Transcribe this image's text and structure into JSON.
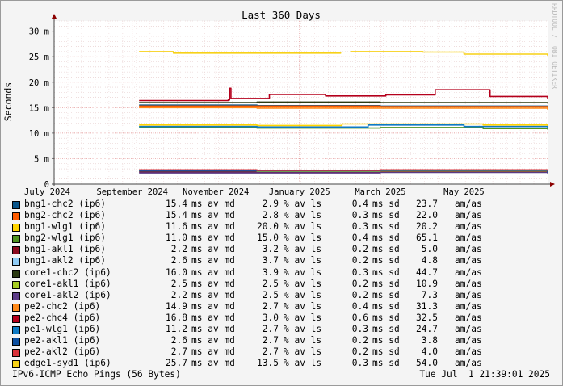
{
  "chart_data": {
    "type": "line",
    "title": "Last 360 Days",
    "ylabel": "Seconds",
    "watermark": "RRDTOOL / TOBI OETIKER",
    "ylim": [
      0,
      32
    ],
    "yticks": [
      {
        "v": 0,
        "label": "0"
      },
      {
        "v": 5,
        "label": "5 m"
      },
      {
        "v": 10,
        "label": "10 m"
      },
      {
        "v": 15,
        "label": "15 m"
      },
      {
        "v": 20,
        "label": "20 m"
      },
      {
        "v": 25,
        "label": "25 m"
      },
      {
        "v": 30,
        "label": "30 m"
      }
    ],
    "xlim": [
      "2024-07-06",
      "2025-07-01"
    ],
    "xticks": [
      {
        "date": "2024-07-01",
        "label": "July 2024"
      },
      {
        "date": "2024-09-01",
        "label": "September 2024"
      },
      {
        "date": "2024-11-01",
        "label": "November 2024"
      },
      {
        "date": "2025-01-01",
        "label": "January 2025"
      },
      {
        "date": "2025-03-01",
        "label": "March 2025"
      },
      {
        "date": "2025-05-01",
        "label": "May 2025"
      }
    ],
    "series": [
      {
        "name": "bng1-chc2 (ip6)",
        "color": "#08558a",
        "points": [
          [
            "2024-09-06",
            15.5
          ],
          [
            "2024-12-01",
            15.4
          ],
          [
            "2025-03-01",
            15.3
          ],
          [
            "2025-07-01",
            15.0
          ]
        ]
      },
      {
        "name": "bng2-chc2 (ip6)",
        "color": "#ff5c00",
        "points": [
          [
            "2024-09-06",
            15.3
          ],
          [
            "2024-12-01",
            15.3
          ],
          [
            "2025-03-01",
            15.2
          ],
          [
            "2025-07-01",
            14.8
          ]
        ]
      },
      {
        "name": "bng1-wlg1 (ip6)",
        "color": "#ffd400",
        "points": [
          [
            "2024-09-06",
            11.6
          ],
          [
            "2024-12-01",
            11.5
          ],
          [
            "2025-02-01",
            11.8
          ],
          [
            "2025-05-15",
            11.6
          ],
          [
            "2025-07-01",
            11.3
          ]
        ]
      },
      {
        "name": "bng2-wlg1 (ip6)",
        "color": "#4f9320",
        "points": [
          [
            "2024-09-06",
            11.2
          ],
          [
            "2024-12-01",
            11.0
          ],
          [
            "2025-03-01",
            11.1
          ],
          [
            "2025-05-15",
            10.9
          ],
          [
            "2025-07-01",
            10.7
          ]
        ]
      },
      {
        "name": "bng1-akl1 (ip6)",
        "color": "#8c0a1e",
        "points": [
          [
            "2024-09-06",
            2.4
          ],
          [
            "2024-12-01",
            2.3
          ],
          [
            "2025-03-01",
            2.4
          ],
          [
            "2025-07-01",
            2.2
          ]
        ]
      },
      {
        "name": "bng1-akl2 (ip6)",
        "color": "#8fcbf5",
        "points": [
          [
            "2024-09-06",
            2.7
          ],
          [
            "2024-12-01",
            2.6
          ],
          [
            "2025-03-01",
            2.8
          ],
          [
            "2025-07-01",
            2.5
          ]
        ]
      },
      {
        "name": "core1-chc2 (ip6)",
        "color": "#2b3a12",
        "points": [
          [
            "2024-09-06",
            16.0
          ],
          [
            "2024-12-01",
            16.1
          ],
          [
            "2025-03-01",
            16.0
          ],
          [
            "2025-07-01",
            15.8
          ]
        ]
      },
      {
        "name": "core1-akl1 (ip6)",
        "color": "#a5cc22",
        "points": [
          [
            "2024-09-06",
            2.6
          ],
          [
            "2024-12-01",
            2.5
          ],
          [
            "2025-03-01",
            2.6
          ],
          [
            "2025-07-01",
            2.4
          ]
        ]
      },
      {
        "name": "core1-akl2 (ip6)",
        "color": "#5b3a86",
        "points": [
          [
            "2024-09-06",
            2.2
          ],
          [
            "2024-12-01",
            2.2
          ],
          [
            "2025-03-01",
            2.3
          ],
          [
            "2025-07-01",
            2.1
          ]
        ]
      },
      {
        "name": "pe2-chc2 (ip6)",
        "color": "#ff8a1a",
        "points": [
          [
            "2024-09-06",
            15.0
          ],
          [
            "2024-12-01",
            14.9
          ],
          [
            "2025-03-01",
            14.9
          ],
          [
            "2025-07-01",
            14.6
          ]
        ]
      },
      {
        "name": "pe2-chc4 (ip6)",
        "color": "#b5001c",
        "points": [
          [
            "2024-09-06",
            16.4
          ],
          [
            "2024-11-10",
            16.5
          ],
          [
            "2024-11-11",
            18.8
          ],
          [
            "2024-11-12",
            16.8
          ],
          [
            "2024-12-10",
            17.6
          ],
          [
            "2025-01-20",
            17.3
          ],
          [
            "2025-03-05",
            17.5
          ],
          [
            "2025-04-10",
            18.5
          ],
          [
            "2025-05-20",
            17.2
          ],
          [
            "2025-07-01",
            16.8
          ]
        ]
      },
      {
        "name": "pe1-wlg1 (ip6)",
        "color": "#0e7ac4",
        "points": [
          [
            "2024-09-06",
            11.3
          ],
          [
            "2024-12-01",
            11.2
          ],
          [
            "2025-02-20",
            11.6
          ],
          [
            "2025-05-01",
            11.3
          ],
          [
            "2025-07-01",
            10.9
          ]
        ]
      },
      {
        "name": "pe2-akl1 (ip6)",
        "color": "#0c4fa0",
        "points": [
          [
            "2024-09-06",
            2.6
          ],
          [
            "2024-12-01",
            2.6
          ],
          [
            "2025-03-01",
            2.7
          ],
          [
            "2025-07-01",
            2.3
          ]
        ]
      },
      {
        "name": "pe2-akl2 (ip6)",
        "color": "#d9323a",
        "points": [
          [
            "2024-09-06",
            2.8
          ],
          [
            "2024-12-01",
            2.7
          ],
          [
            "2025-03-01",
            2.8
          ],
          [
            "2025-07-01",
            2.6
          ]
        ]
      },
      {
        "name": "edge1-syd1 (ip6)",
        "color": "#f7d117",
        "points": [
          [
            "2024-09-06",
            26.0
          ],
          [
            "2024-10-01",
            25.7
          ],
          [
            "2024-12-01",
            25.7
          ],
          [
            "2025-01-31",
            25.8
          ],
          [
            "2025-02-01",
            null
          ],
          [
            "2025-02-07",
            26.0
          ],
          [
            "2025-04-01",
            25.9
          ],
          [
            "2025-05-01",
            25.5
          ],
          [
            "2025-07-01",
            25.2
          ]
        ]
      }
    ]
  },
  "legend": [
    {
      "name": "bng1-chc2 (ip6)",
      "color": "#08558a",
      "median": "15.4",
      "loss": "2.9",
      "sd": "0.4",
      "ratio": "23.7",
      "unit": "am/as"
    },
    {
      "name": "bng2-chc2 (ip6)",
      "color": "#ff5c00",
      "median": "15.4",
      "loss": "2.8",
      "sd": "0.3",
      "ratio": "22.0",
      "unit": "am/as"
    },
    {
      "name": "bng1-wlg1 (ip6)",
      "color": "#ffd400",
      "median": "11.6",
      "loss": "20.0",
      "sd": "0.3",
      "ratio": "20.2",
      "unit": "am/as"
    },
    {
      "name": "bng2-wlg1 (ip6)",
      "color": "#4f9320",
      "median": "11.0",
      "loss": "15.0",
      "sd": "0.4",
      "ratio": "65.1",
      "unit": "am/as"
    },
    {
      "name": "bng1-akl1 (ip6)",
      "color": "#8c0a1e",
      "median": "2.2",
      "loss": "3.2",
      "sd": "0.2",
      "ratio": "5.0",
      "unit": "am/as"
    },
    {
      "name": "bng1-akl2 (ip6)",
      "color": "#8fcbf5",
      "median": "2.6",
      "loss": "3.7",
      "sd": "0.2",
      "ratio": "4.8",
      "unit": "am/as"
    },
    {
      "name": "core1-chc2 (ip6)",
      "color": "#2b3a12",
      "median": "16.0",
      "loss": "3.9",
      "sd": "0.3",
      "ratio": "44.7",
      "unit": "am/as"
    },
    {
      "name": "core1-akl1 (ip6)",
      "color": "#a5cc22",
      "median": "2.5",
      "loss": "2.5",
      "sd": "0.2",
      "ratio": "10.9",
      "unit": "am/as"
    },
    {
      "name": "core1-akl2 (ip6)",
      "color": "#5b3a86",
      "median": "2.2",
      "loss": "2.5",
      "sd": "0.2",
      "ratio": "7.3",
      "unit": "am/as"
    },
    {
      "name": "pe2-chc2 (ip6)",
      "color": "#ff8a1a",
      "median": "14.9",
      "loss": "2.7",
      "sd": "0.4",
      "ratio": "31.3",
      "unit": "am/as"
    },
    {
      "name": "pe2-chc4 (ip6)",
      "color": "#b5001c",
      "median": "16.8",
      "loss": "3.0",
      "sd": "0.6",
      "ratio": "32.5",
      "unit": "am/as"
    },
    {
      "name": "pe1-wlg1 (ip6)",
      "color": "#0e7ac4",
      "median": "11.2",
      "loss": "2.7",
      "sd": "0.3",
      "ratio": "24.7",
      "unit": "am/as"
    },
    {
      "name": "pe2-akl1 (ip6)",
      "color": "#0c4fa0",
      "median": "2.6",
      "loss": "2.7",
      "sd": "0.2",
      "ratio": "3.8",
      "unit": "am/as"
    },
    {
      "name": "pe2-akl2 (ip6)",
      "color": "#d9323a",
      "median": "2.7",
      "loss": "2.7",
      "sd": "0.2",
      "ratio": "4.0",
      "unit": "am/as"
    },
    {
      "name": "edge1-syd1 (ip6)",
      "color": "#f7d117",
      "median": "25.7",
      "loss": "13.5",
      "sd": "0.3",
      "ratio": "54.0",
      "unit": "am/as"
    }
  ],
  "legend_units": {
    "median": "ms av md",
    "loss": "% av ls",
    "sd": "ms sd"
  },
  "footer": {
    "left": "IPv6-ICMP Echo Pings (56 Bytes)",
    "right": "Tue Jul  1 21:39:01 2025"
  }
}
